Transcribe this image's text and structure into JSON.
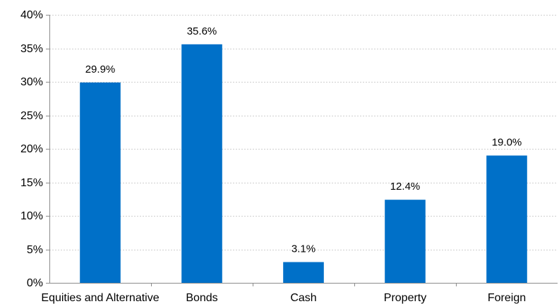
{
  "chart_data": {
    "type": "bar",
    "categories": [
      "Equities and Alternative",
      "Bonds",
      "Cash",
      "Property",
      "Foreign"
    ],
    "values": [
      29.9,
      35.6,
      3.1,
      12.4,
      19.0
    ],
    "data_labels": [
      "29.9%",
      "35.6%",
      "3.1%",
      "12.4%",
      "19.0%"
    ],
    "y_ticks": [
      0,
      5,
      10,
      15,
      20,
      25,
      30,
      35,
      40
    ],
    "y_tick_labels": [
      "0%",
      "5%",
      "10%",
      "15%",
      "20%",
      "25%",
      "30%",
      "35%",
      "40%"
    ],
    "ylim": [
      0,
      40
    ],
    "grid": true,
    "legend": "none",
    "title": "",
    "xlabel": "",
    "ylabel": "",
    "bar_color": "#0070c8",
    "grid_color": "#cfcfcf",
    "axis_color": "#8c8c8c"
  }
}
